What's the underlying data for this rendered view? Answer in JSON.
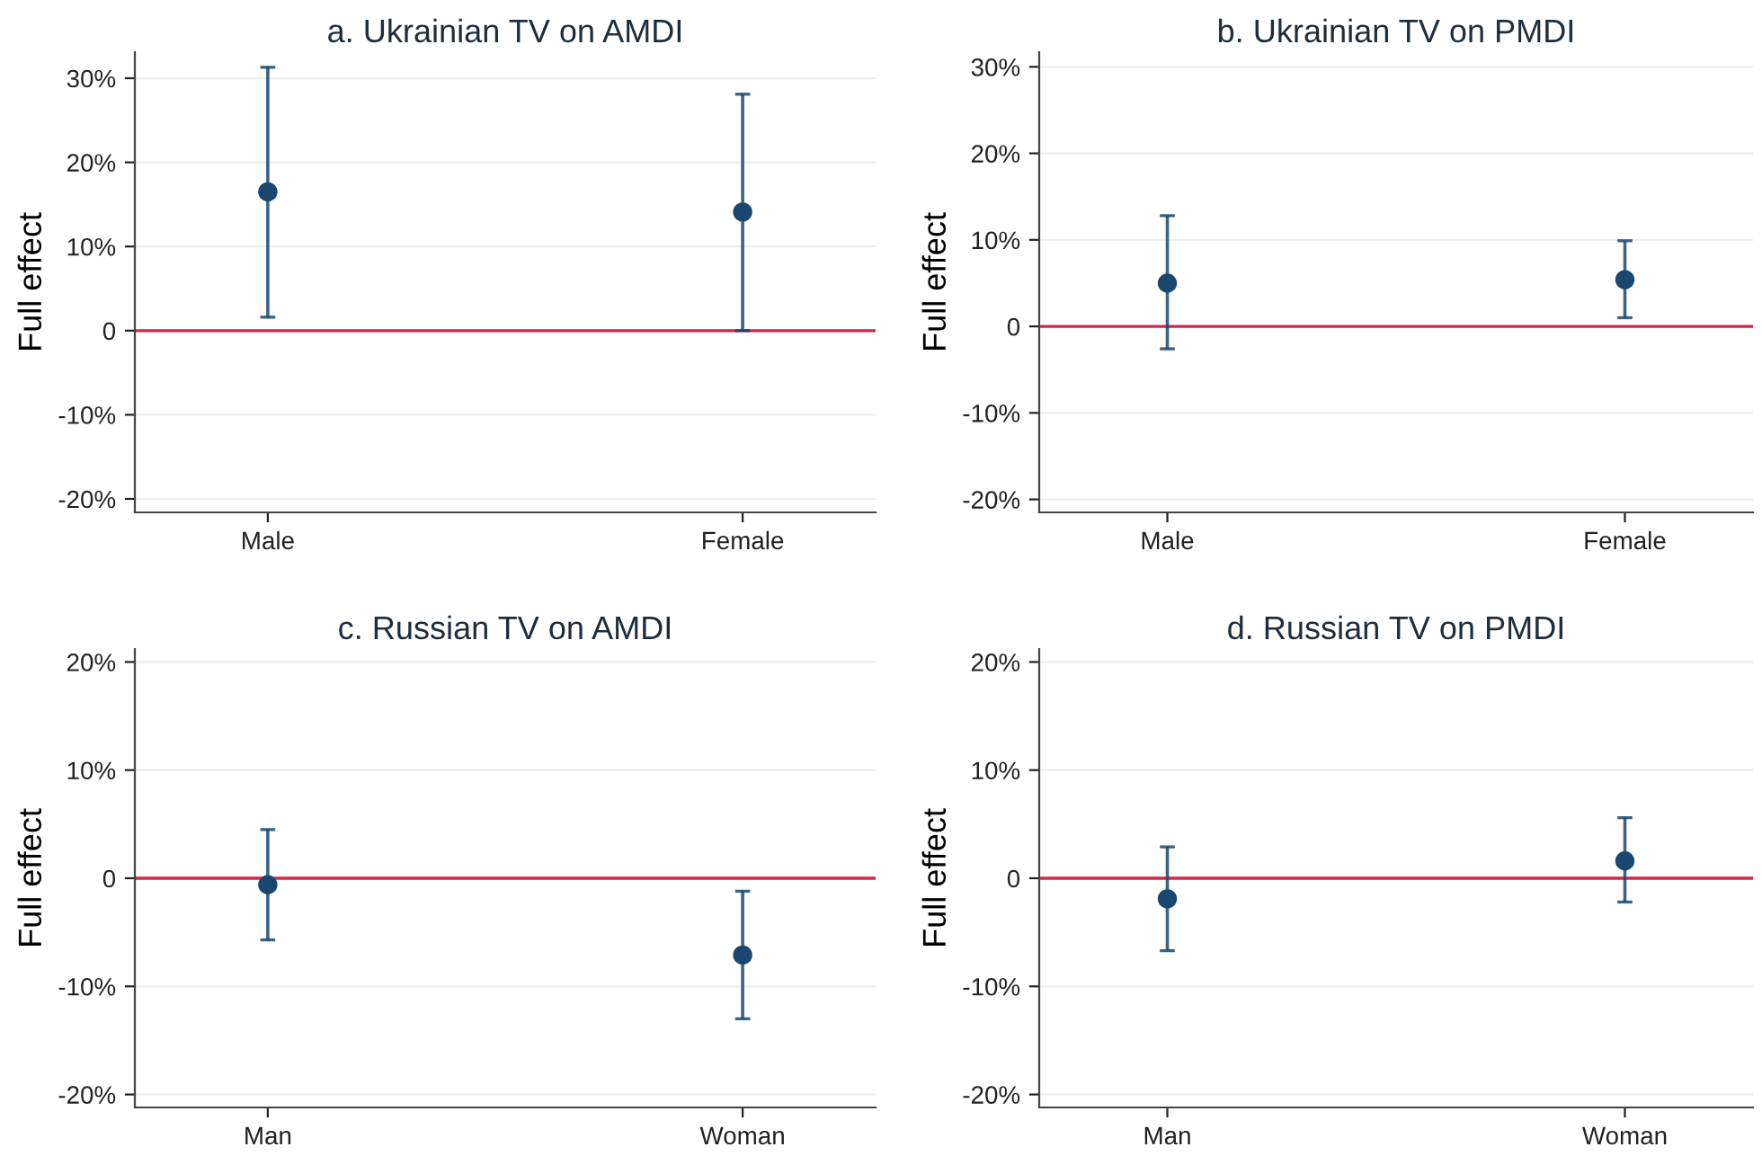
{
  "chart_data": [
    {
      "type": "scatter",
      "title": "a. Ukrainian TV on AMDI",
      "ylabel": "Full effect",
      "categories": [
        "Male",
        "Female"
      ],
      "series": [
        {
          "color": "#1a476f",
          "values": [
            16.5,
            14.1
          ],
          "errors": [
            [
              1.6,
              31.3
            ],
            [
              0,
              28.1
            ]
          ]
        }
      ],
      "marker": "circle",
      "ylim": [
        -21.6,
        33.1
      ],
      "yticks": [
        {
          "value": -20,
          "label": "-20%"
        },
        {
          "value": -10,
          "label": "-10%"
        },
        0,
        {
          "value": 10,
          "label": "10%"
        },
        {
          "value": 20,
          "label": "20%"
        },
        {
          "value": 30,
          "label": "30%"
        }
      ],
      "grid": "y",
      "ref_lines": [
        {
          "axis": "y",
          "value": 0,
          "color": "#d6244a"
        }
      ]
    },
    {
      "type": "scatter",
      "title": "b. Ukrainian TV on PMDI",
      "ylabel": "Full effect",
      "categories": [
        "Male",
        "Female"
      ],
      "series": [
        {
          "color": "#1a476f",
          "values": [
            5.0,
            5.4
          ],
          "errors": [
            [
              -2.6,
              12.8
            ],
            [
              1.0,
              9.9
            ]
          ]
        }
      ],
      "marker": "circle",
      "ylim": [
        -21.5,
        31.7
      ],
      "yticks": [
        {
          "value": -20,
          "label": "-20%"
        },
        {
          "value": -10,
          "label": "-10%"
        },
        0,
        {
          "value": 10,
          "label": "10%"
        },
        {
          "value": 20,
          "label": "20%"
        },
        {
          "value": 30,
          "label": "30%"
        }
      ],
      "grid": "y",
      "ref_lines": [
        {
          "axis": "y",
          "value": 0,
          "color": "#d6244a"
        }
      ]
    },
    {
      "type": "scatter",
      "title": "c. Russian TV on AMDI",
      "ylabel": "Full effect",
      "categories": [
        "Man",
        "Woman"
      ],
      "series": [
        {
          "color": "#1a476f",
          "values": [
            -0.6,
            -7.1
          ],
          "errors": [
            [
              -5.7,
              4.5
            ],
            [
              -13.0,
              -1.2
            ]
          ]
        }
      ],
      "marker": "circle",
      "ylim": [
        -21.2,
        21.2
      ],
      "yticks": [
        {
          "value": -20,
          "label": "-20%"
        },
        {
          "value": -10,
          "label": "-10%"
        },
        0,
        {
          "value": 10,
          "label": "10%"
        },
        {
          "value": 20,
          "label": "20%"
        }
      ],
      "grid": "y",
      "ref_lines": [
        {
          "axis": "y",
          "value": 0,
          "color": "#d6244a"
        }
      ]
    },
    {
      "type": "scatter",
      "title": "d. Russian TV on PMDI",
      "ylabel": "Full effect",
      "categories": [
        "Man",
        "Woman"
      ],
      "series": [
        {
          "color": "#1a476f",
          "values": [
            -1.9,
            1.6
          ],
          "errors": [
            [
              -6.7,
              2.9
            ],
            [
              -2.2,
              5.6
            ]
          ]
        }
      ],
      "marker": "circle",
      "ylim": [
        -21.2,
        21.2
      ],
      "yticks": [
        {
          "value": -20,
          "label": "-20%"
        },
        {
          "value": -10,
          "label": "-10%"
        },
        0,
        {
          "value": 10,
          "label": "10%"
        },
        {
          "value": 20,
          "label": "20%"
        }
      ],
      "grid": "y",
      "ref_lines": [
        {
          "axis": "y",
          "value": 0,
          "color": "#d6244a"
        }
      ]
    }
  ]
}
